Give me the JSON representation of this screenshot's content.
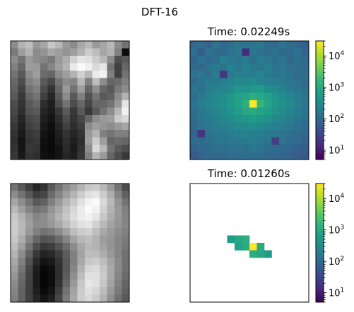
{
  "figure": {
    "title": "DFT-16"
  },
  "colors": {
    "viridis_stops": [
      "#440154",
      "#482878",
      "#3e4989",
      "#31688e",
      "#26828e",
      "#1f9e89",
      "#35b779",
      "#6ece58",
      "#b5de2b",
      "#fde725"
    ]
  },
  "chart_data": [
    {
      "type": "heatmap",
      "panel": "top-left",
      "title": "",
      "colormap": "gray",
      "rows": 16,
      "cols": 16,
      "values": [
        [
          0.55,
          0.7,
          0.75,
          0.6,
          0.65,
          0.78,
          0.72,
          0.6,
          0.55,
          0.66,
          0.72,
          0.6,
          0.65,
          0.72,
          0.55,
          0.45
        ],
        [
          0.48,
          0.62,
          0.7,
          0.55,
          0.58,
          0.66,
          0.62,
          0.58,
          0.62,
          0.7,
          0.8,
          0.74,
          0.65,
          0.7,
          0.5,
          0.05
        ],
        [
          0.55,
          0.45,
          0.6,
          0.55,
          0.52,
          0.48,
          0.6,
          0.68,
          0.82,
          0.9,
          0.88,
          0.8,
          0.72,
          0.55,
          0.3,
          0.35
        ],
        [
          0.5,
          0.4,
          0.62,
          0.6,
          0.45,
          0.52,
          0.62,
          0.7,
          0.92,
          0.98,
          0.94,
          0.85,
          0.9,
          0.45,
          0.25,
          0.4
        ],
        [
          0.45,
          0.35,
          0.55,
          0.62,
          0.42,
          0.4,
          0.55,
          0.62,
          0.7,
          0.82,
          0.72,
          0.92,
          0.95,
          0.5,
          0.25,
          0.45
        ],
        [
          0.4,
          0.3,
          0.5,
          0.55,
          0.35,
          0.28,
          0.45,
          0.55,
          0.52,
          0.72,
          0.5,
          0.74,
          0.55,
          0.4,
          0.42,
          0.5
        ],
        [
          0.38,
          0.26,
          0.45,
          0.5,
          0.3,
          0.2,
          0.4,
          0.6,
          0.45,
          0.62,
          0.4,
          0.56,
          0.4,
          0.35,
          0.48,
          0.55
        ],
        [
          0.35,
          0.22,
          0.4,
          0.45,
          0.25,
          0.15,
          0.35,
          0.55,
          0.35,
          0.5,
          0.32,
          0.45,
          0.35,
          0.38,
          0.55,
          0.7
        ],
        [
          0.3,
          0.2,
          0.35,
          0.4,
          0.18,
          0.12,
          0.3,
          0.45,
          0.3,
          0.4,
          0.28,
          0.4,
          0.4,
          0.45,
          0.6,
          0.9
        ],
        [
          0.28,
          0.18,
          0.32,
          0.35,
          0.15,
          0.1,
          0.22,
          0.35,
          0.22,
          0.35,
          0.22,
          0.35,
          0.45,
          0.55,
          0.72,
          0.95
        ],
        [
          0.25,
          0.15,
          0.28,
          0.3,
          0.12,
          0.08,
          0.18,
          0.3,
          0.2,
          0.28,
          0.4,
          0.55,
          0.6,
          0.62,
          0.8,
          0.85
        ],
        [
          0.22,
          0.12,
          0.25,
          0.28,
          0.1,
          0.06,
          0.15,
          0.25,
          0.18,
          0.24,
          0.55,
          0.62,
          0.58,
          0.55,
          0.6,
          0.65
        ],
        [
          0.2,
          0.1,
          0.22,
          0.24,
          0.08,
          0.05,
          0.12,
          0.2,
          0.15,
          0.2,
          0.6,
          0.7,
          0.5,
          0.45,
          0.5,
          0.5
        ],
        [
          0.18,
          0.08,
          0.2,
          0.22,
          0.06,
          0.04,
          0.1,
          0.18,
          0.12,
          0.18,
          0.62,
          0.8,
          0.62,
          0.4,
          0.42,
          0.4
        ],
        [
          0.2,
          0.08,
          0.22,
          0.2,
          0.05,
          0.04,
          0.08,
          0.16,
          0.1,
          0.2,
          0.55,
          0.85,
          0.72,
          0.45,
          0.35,
          0.3
        ],
        [
          0.22,
          0.1,
          0.2,
          0.18,
          0.06,
          0.05,
          0.08,
          0.15,
          0.12,
          0.22,
          0.5,
          0.7,
          0.6,
          0.4,
          0.3,
          0.22
        ]
      ]
    },
    {
      "type": "heatmap",
      "panel": "top-right",
      "title": "Time: 0.02249s",
      "colormap": "viridis",
      "scale": "log",
      "rows": 16,
      "cols": 16,
      "values": [
        [
          90,
          110,
          80,
          150,
          95,
          120,
          160,
          130,
          140,
          180,
          110,
          95,
          130,
          100,
          85,
          70
        ],
        [
          120,
          60,
          140,
          100,
          90,
          130,
          180,
          15,
          150,
          120,
          110,
          140,
          90,
          100,
          130,
          80
        ],
        [
          85,
          130,
          95,
          110,
          200,
          160,
          140,
          180,
          120,
          200,
          150,
          110,
          160,
          90,
          120,
          100
        ],
        [
          100,
          90,
          130,
          170,
          140,
          220,
          160,
          240,
          180,
          150,
          210,
          130,
          150,
          120,
          110,
          90
        ],
        [
          130,
          160,
          120,
          190,
          20,
          180,
          240,
          200,
          220,
          260,
          180,
          150,
          170,
          140,
          100,
          120
        ],
        [
          90,
          140,
          180,
          160,
          220,
          260,
          300,
          280,
          350,
          260,
          240,
          200,
          180,
          150,
          130,
          100
        ],
        [
          150,
          120,
          200,
          240,
          260,
          320,
          450,
          420,
          500,
          600,
          350,
          300,
          240,
          180,
          150,
          120
        ],
        [
          110,
          180,
          220,
          300,
          350,
          500,
          700,
          800,
          1100,
          900,
          700,
          450,
          350,
          260,
          200,
          150
        ],
        [
          140,
          200,
          260,
          320,
          400,
          520,
          750,
          1200,
          30000,
          1500,
          800,
          500,
          400,
          300,
          220,
          160
        ],
        [
          120,
          160,
          220,
          280,
          330,
          450,
          600,
          900,
          1000,
          800,
          600,
          420,
          320,
          260,
          190,
          140
        ],
        [
          100,
          150,
          180,
          220,
          280,
          350,
          420,
          500,
          600,
          480,
          400,
          300,
          260,
          200,
          150,
          120
        ],
        [
          90,
          130,
          160,
          200,
          220,
          260,
          300,
          320,
          350,
          300,
          260,
          220,
          190,
          160,
          130,
          100
        ],
        [
          80,
          20,
          140,
          160,
          180,
          200,
          220,
          240,
          230,
          210,
          180,
          160,
          140,
          120,
          100,
          90
        ],
        [
          110,
          100,
          120,
          140,
          150,
          170,
          160,
          180,
          200,
          170,
          150,
          25,
          130,
          110,
          100,
          80
        ],
        [
          70,
          90,
          100,
          120,
          110,
          130,
          140,
          120,
          150,
          130,
          110,
          100,
          90,
          80,
          70,
          60
        ],
        [
          60,
          80,
          90,
          100,
          95,
          110,
          100,
          120,
          110,
          100,
          90,
          85,
          80,
          75,
          65,
          55
        ]
      ],
      "colorbar": {
        "range": [
          5,
          30000
        ],
        "tick_labels": [
          "10^4",
          "10^3",
          "10^2",
          "10^1"
        ]
      }
    },
    {
      "type": "heatmap",
      "panel": "bottom-left",
      "title": "",
      "colormap": "gray",
      "rows": 16,
      "cols": 16,
      "values": [
        [
          0.45,
          0.35,
          0.25,
          0.15,
          0.2,
          0.35,
          0.45,
          0.55,
          0.62,
          0.7,
          0.78,
          0.8,
          0.72,
          0.6,
          0.45,
          0.3
        ],
        [
          0.55,
          0.45,
          0.35,
          0.25,
          0.28,
          0.42,
          0.52,
          0.62,
          0.7,
          0.8,
          0.88,
          0.9,
          0.8,
          0.68,
          0.52,
          0.38
        ],
        [
          0.65,
          0.55,
          0.45,
          0.35,
          0.38,
          0.5,
          0.6,
          0.7,
          0.78,
          0.88,
          0.95,
          0.98,
          0.85,
          0.72,
          0.58,
          0.45
        ],
        [
          0.72,
          0.62,
          0.52,
          0.45,
          0.48,
          0.58,
          0.66,
          0.76,
          0.84,
          0.92,
          0.98,
          0.95,
          0.82,
          0.7,
          0.6,
          0.5
        ],
        [
          0.78,
          0.7,
          0.6,
          0.52,
          0.55,
          0.62,
          0.7,
          0.78,
          0.86,
          0.92,
          0.95,
          0.9,
          0.78,
          0.68,
          0.6,
          0.52
        ],
        [
          0.8,
          0.72,
          0.62,
          0.55,
          0.55,
          0.6,
          0.66,
          0.74,
          0.82,
          0.88,
          0.9,
          0.82,
          0.72,
          0.64,
          0.58,
          0.52
        ],
        [
          0.8,
          0.72,
          0.6,
          0.5,
          0.45,
          0.48,
          0.55,
          0.64,
          0.74,
          0.8,
          0.82,
          0.75,
          0.66,
          0.6,
          0.55,
          0.5
        ],
        [
          0.78,
          0.68,
          0.52,
          0.4,
          0.32,
          0.35,
          0.42,
          0.52,
          0.64,
          0.72,
          0.75,
          0.7,
          0.62,
          0.58,
          0.52,
          0.48
        ],
        [
          0.74,
          0.62,
          0.45,
          0.3,
          0.22,
          0.24,
          0.32,
          0.42,
          0.55,
          0.66,
          0.72,
          0.7,
          0.64,
          0.58,
          0.52,
          0.46
        ],
        [
          0.7,
          0.55,
          0.38,
          0.22,
          0.14,
          0.16,
          0.24,
          0.36,
          0.5,
          0.64,
          0.74,
          0.74,
          0.68,
          0.6,
          0.52,
          0.44
        ],
        [
          0.66,
          0.5,
          0.32,
          0.16,
          0.08,
          0.1,
          0.2,
          0.34,
          0.5,
          0.66,
          0.78,
          0.8,
          0.74,
          0.64,
          0.54,
          0.44
        ],
        [
          0.62,
          0.46,
          0.28,
          0.12,
          0.04,
          0.06,
          0.18,
          0.34,
          0.52,
          0.7,
          0.84,
          0.86,
          0.78,
          0.66,
          0.54,
          0.44
        ],
        [
          0.58,
          0.42,
          0.26,
          0.1,
          0.02,
          0.05,
          0.18,
          0.36,
          0.56,
          0.74,
          0.88,
          0.88,
          0.8,
          0.66,
          0.52,
          0.42
        ],
        [
          0.55,
          0.4,
          0.25,
          0.1,
          0.02,
          0.05,
          0.2,
          0.4,
          0.6,
          0.78,
          0.9,
          0.88,
          0.78,
          0.64,
          0.5,
          0.4
        ],
        [
          0.52,
          0.38,
          0.25,
          0.12,
          0.04,
          0.08,
          0.24,
          0.45,
          0.64,
          0.8,
          0.88,
          0.84,
          0.74,
          0.6,
          0.48,
          0.38
        ],
        [
          0.5,
          0.38,
          0.26,
          0.15,
          0.08,
          0.12,
          0.28,
          0.48,
          0.66,
          0.8,
          0.85,
          0.8,
          0.7,
          0.56,
          0.44,
          0.35
        ]
      ]
    },
    {
      "type": "heatmap",
      "panel": "bottom-right",
      "title": "Time: 0.01260s",
      "colormap": "viridis",
      "scale": "log",
      "rows": 16,
      "cols": 16,
      "cells": [
        {
          "row": 7,
          "col": 5,
          "value": 600
        },
        {
          "row": 7,
          "col": 6,
          "value": 900
        },
        {
          "row": 7,
          "col": 7,
          "value": 1100
        },
        {
          "row": 8,
          "col": 6,
          "value": 700
        },
        {
          "row": 8,
          "col": 7,
          "value": 1000
        },
        {
          "row": 8,
          "col": 8,
          "value": 30000
        },
        {
          "row": 8,
          "col": 9,
          "value": 1000
        },
        {
          "row": 9,
          "col": 8,
          "value": 1100
        },
        {
          "row": 9,
          "col": 9,
          "value": 900
        },
        {
          "row": 9,
          "col": 10,
          "value": 600
        }
      ],
      "colorbar": {
        "range": [
          5,
          30000
        ],
        "tick_labels": [
          "10^4",
          "10^3",
          "10^2",
          "10^1"
        ]
      }
    }
  ]
}
